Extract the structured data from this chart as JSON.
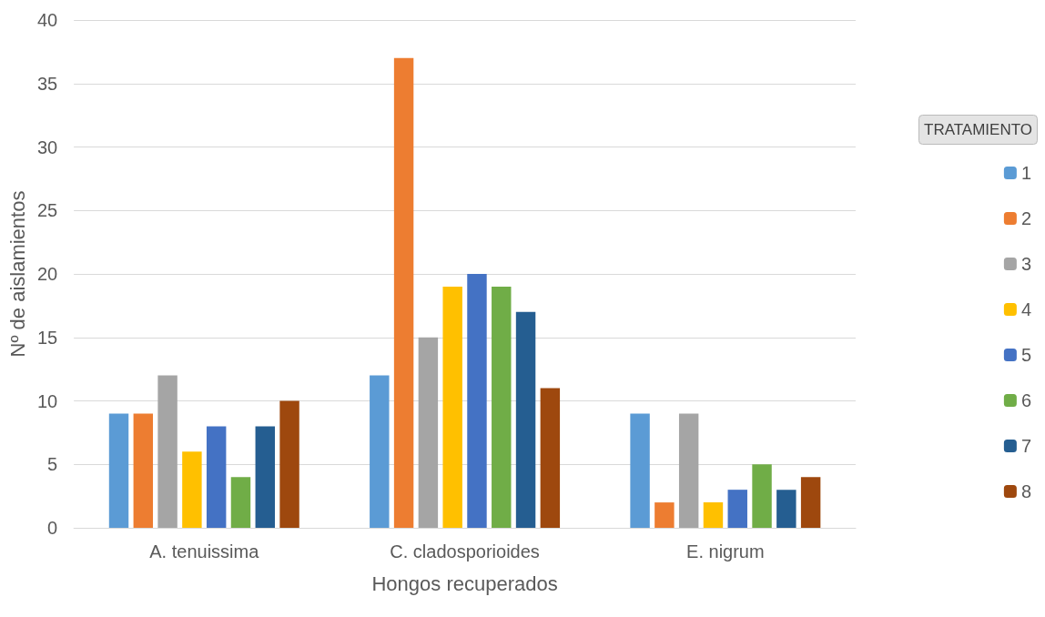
{
  "chart_data": {
    "type": "bar",
    "xlabel": "Hongos recuperados",
    "ylabel": "Nº de aislamientos",
    "legend_title": "TRATAMIENTO",
    "categories": [
      "A. tenuissima",
      "C. cladosporioides",
      "E. nigrum"
    ],
    "series": [
      {
        "name": "1",
        "color": "#5b9bd5",
        "values": [
          9,
          12,
          9
        ]
      },
      {
        "name": "2",
        "color": "#ed7d31",
        "values": [
          9,
          37,
          2
        ]
      },
      {
        "name": "3",
        "color": "#a5a5a5",
        "values": [
          12,
          15,
          9
        ]
      },
      {
        "name": "4",
        "color": "#ffc000",
        "values": [
          6,
          19,
          2
        ]
      },
      {
        "name": "5",
        "color": "#4472c4",
        "values": [
          8,
          20,
          3
        ]
      },
      {
        "name": "6",
        "color": "#70ad47",
        "values": [
          4,
          19,
          5
        ]
      },
      {
        "name": "7",
        "color": "#255e91",
        "values": [
          8,
          17,
          3
        ]
      },
      {
        "name": "8",
        "color": "#9e480e",
        "values": [
          10,
          11,
          4
        ]
      }
    ],
    "ylim": [
      0,
      40
    ],
    "yticks": [
      0,
      5,
      10,
      15,
      20,
      25,
      30,
      35,
      40
    ],
    "grid": "y",
    "legend": "right"
  }
}
